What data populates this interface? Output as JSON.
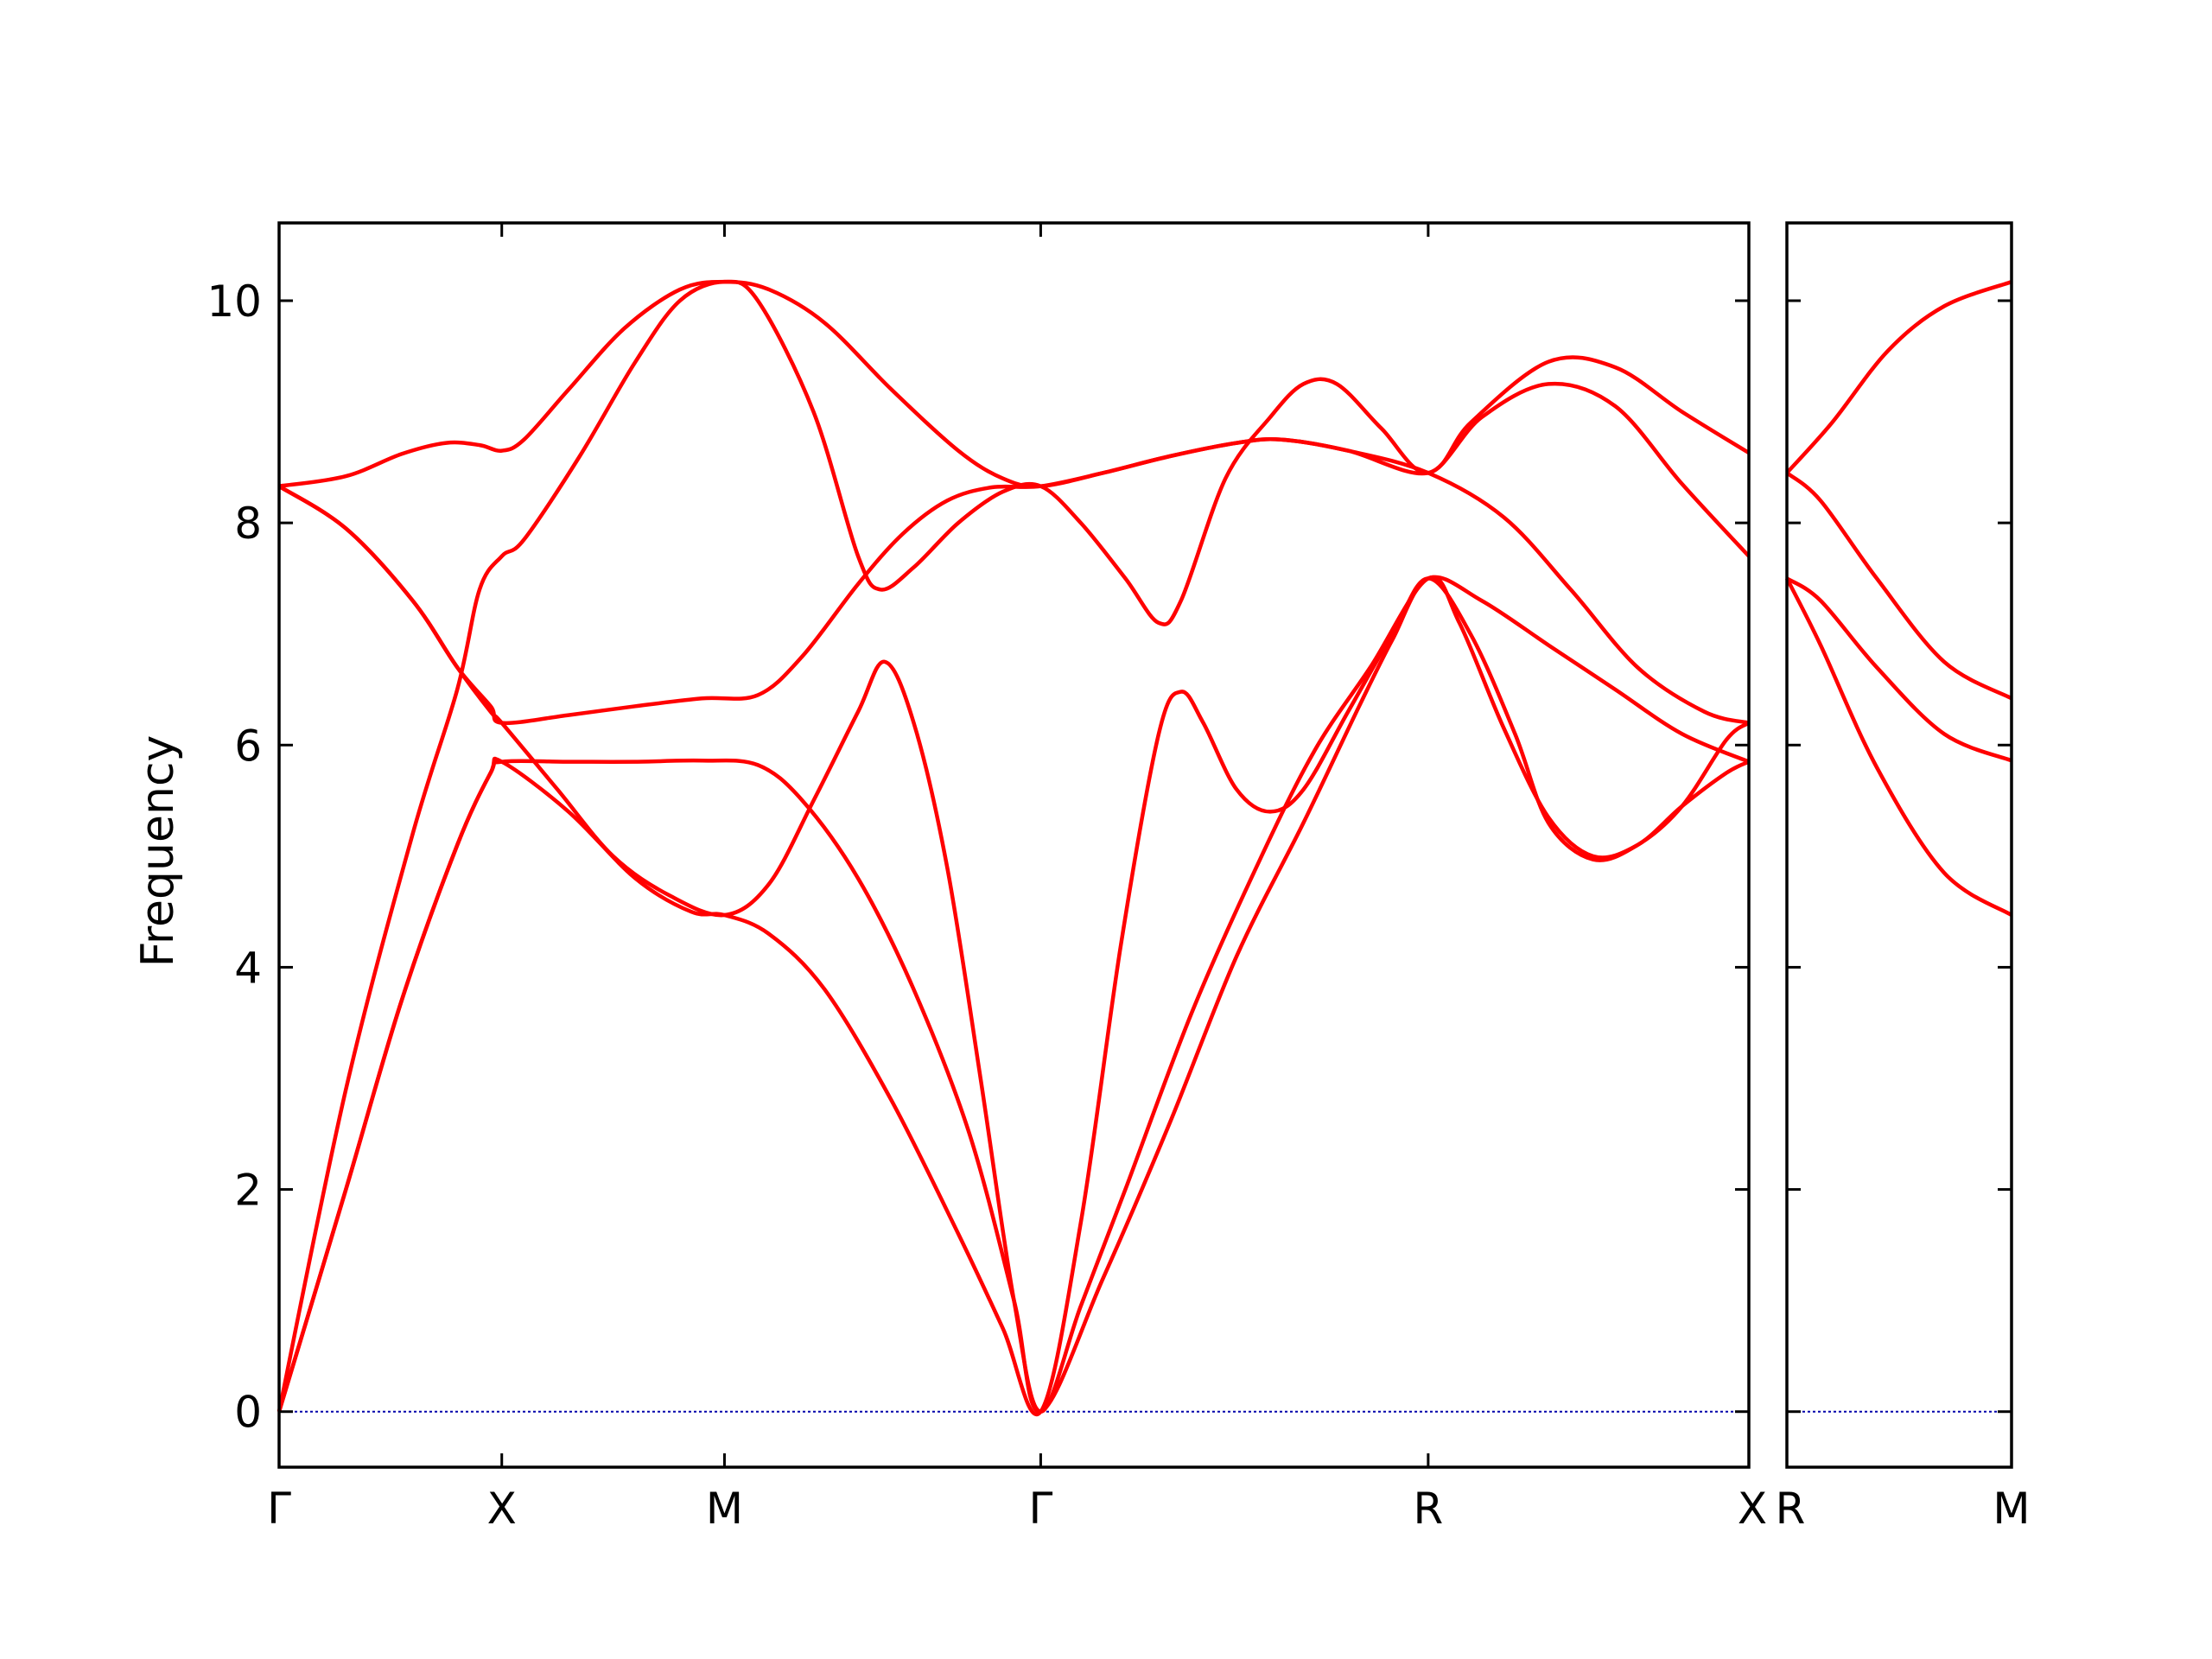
{
  "chart_data": {
    "type": "line",
    "ylabel": "Frequency",
    "ylim": [
      -0.5,
      10.7
    ],
    "yticks": [
      0,
      2,
      4,
      6,
      8,
      10
    ],
    "colors": {
      "band": "#ff0000",
      "zero_line": "#0000aa",
      "axes": "#000000"
    },
    "panels": [
      {
        "name": "left",
        "x_range": [
          0,
          6.6
        ],
        "xticks": [
          {
            "x": 0.0,
            "label": "Γ"
          },
          {
            "x": 1.0,
            "label": "X"
          },
          {
            "x": 2.0,
            "label": "M"
          },
          {
            "x": 3.42,
            "label": "Γ"
          },
          {
            "x": 5.16,
            "label": "R"
          },
          {
            "x": 6.6,
            "label": "X"
          }
        ],
        "series": [
          {
            "values": [
              [
                0,
                8.33
              ],
              [
                0.3,
                8.42
              ],
              [
                0.55,
                8.62
              ],
              [
                0.75,
                8.72
              ],
              [
                0.9,
                8.7
              ],
              [
                1.0,
                8.65
              ],
              [
                1.1,
                8.75
              ],
              [
                1.3,
                9.2
              ],
              [
                1.55,
                9.75
              ],
              [
                1.8,
                10.1
              ],
              [
                2.0,
                10.17
              ],
              [
                2.2,
                10.1
              ],
              [
                2.45,
                9.8
              ],
              [
                2.75,
                9.2
              ],
              [
                3.05,
                8.65
              ],
              [
                3.25,
                8.4
              ],
              [
                3.42,
                8.33
              ],
              [
                3.7,
                8.45
              ],
              [
                4.0,
                8.6
              ],
              [
                4.3,
                8.72
              ],
              [
                4.5,
                8.75
              ],
              [
                4.8,
                8.65
              ],
              [
                5.16,
                8.45
              ],
              [
                5.35,
                8.9
              ],
              [
                5.7,
                9.45
              ],
              [
                6.0,
                9.4
              ],
              [
                6.3,
                9.0
              ],
              [
                6.6,
                8.63
              ]
            ]
          },
          {
            "values": [
              [
                0,
                8.33
              ],
              [
                0.3,
                7.95
              ],
              [
                0.6,
                7.3
              ],
              [
                0.8,
                6.7
              ],
              [
                0.95,
                6.35
              ],
              [
                1.0,
                6.2
              ],
              [
                1.3,
                6.27
              ],
              [
                1.6,
                6.35
              ],
              [
                1.9,
                6.42
              ],
              [
                2.15,
                6.45
              ],
              [
                2.35,
                6.8
              ],
              [
                2.6,
                7.45
              ],
              [
                2.8,
                7.9
              ],
              [
                3.0,
                8.2
              ],
              [
                3.2,
                8.32
              ],
              [
                3.42,
                8.33
              ],
              [
                3.7,
                8.45
              ],
              [
                4.0,
                8.6
              ],
              [
                4.3,
                8.72
              ],
              [
                4.5,
                8.75
              ],
              [
                4.8,
                8.65
              ],
              [
                5.16,
                8.45
              ],
              [
                5.5,
                8.05
              ],
              [
                5.8,
                7.4
              ],
              [
                6.1,
                6.7
              ],
              [
                6.4,
                6.3
              ],
              [
                6.6,
                6.2
              ]
            ]
          },
          {
            "values": [
              [
                0,
                8.33
              ],
              [
                0.3,
                7.95
              ],
              [
                0.6,
                7.3
              ],
              [
                0.8,
                6.7
              ],
              [
                0.95,
                6.3
              ],
              [
                1.0,
                6.2
              ],
              [
                1.25,
                5.6
              ],
              [
                1.5,
                5.0
              ],
              [
                1.75,
                4.65
              ],
              [
                2.0,
                4.47
              ],
              [
                2.2,
                4.75
              ],
              [
                2.4,
                5.5
              ],
              [
                2.6,
                6.3
              ],
              [
                2.72,
                6.75
              ],
              [
                2.85,
                6.2
              ],
              [
                3.0,
                4.9
              ],
              [
                3.15,
                3.0
              ],
              [
                3.3,
                1.0
              ],
              [
                3.42,
                0.0
              ],
              [
                3.6,
                0.95
              ],
              [
                3.8,
                2.0
              ],
              [
                4.1,
                3.6
              ],
              [
                4.4,
                4.95
              ],
              [
                4.65,
                5.95
              ],
              [
                4.9,
                6.7
              ],
              [
                5.16,
                7.5
              ],
              [
                5.3,
                7.1
              ],
              [
                5.5,
                6.15
              ],
              [
                5.7,
                5.35
              ],
              [
                5.9,
                5.0
              ],
              [
                6.1,
                5.1
              ],
              [
                6.3,
                5.45
              ],
              [
                6.5,
                5.75
              ],
              [
                6.6,
                5.85
              ]
            ]
          },
          {
            "values": [
              [
                0,
                0.0
              ],
              [
                0.3,
                2.9
              ],
              [
                0.6,
                5.2
              ],
              [
                0.8,
                6.5
              ],
              [
                0.9,
                7.4
              ],
              [
                1.0,
                7.7
              ],
              [
                1.1,
                7.85
              ],
              [
                1.35,
                8.6
              ],
              [
                1.6,
                9.45
              ],
              [
                1.8,
                10.0
              ],
              [
                2.0,
                10.17
              ],
              [
                2.15,
                10.0
              ],
              [
                2.4,
                9.0
              ],
              [
                2.6,
                7.7
              ],
              [
                2.7,
                7.4
              ],
              [
                2.85,
                7.6
              ],
              [
                3.05,
                8.0
              ],
              [
                3.25,
                8.28
              ],
              [
                3.42,
                8.33
              ],
              [
                3.6,
                8.0
              ],
              [
                3.8,
                7.5
              ],
              [
                3.95,
                7.1
              ],
              [
                4.05,
                7.3
              ],
              [
                4.25,
                8.4
              ],
              [
                4.45,
                8.95
              ],
              [
                4.6,
                9.25
              ],
              [
                4.75,
                9.25
              ],
              [
                4.95,
                8.85
              ],
              [
                5.16,
                8.45
              ],
              [
                5.4,
                8.95
              ],
              [
                5.7,
                9.25
              ],
              [
                6.0,
                9.05
              ],
              [
                6.3,
                8.35
              ],
              [
                6.6,
                7.7
              ]
            ]
          },
          {
            "values": [
              [
                0,
                0.0
              ],
              [
                0.3,
                2.0
              ],
              [
                0.55,
                3.7
              ],
              [
                0.8,
                5.1
              ],
              [
                0.95,
                5.75
              ],
              [
                1.0,
                5.85
              ],
              [
                1.3,
                5.4
              ],
              [
                1.6,
                4.8
              ],
              [
                1.85,
                4.5
              ],
              [
                2.0,
                4.47
              ],
              [
                2.2,
                4.3
              ],
              [
                2.45,
                3.8
              ],
              [
                2.75,
                2.8
              ],
              [
                3.05,
                1.6
              ],
              [
                3.25,
                0.75
              ],
              [
                3.42,
                0.0
              ],
              [
                3.6,
                1.7
              ],
              [
                3.78,
                4.2
              ],
              [
                3.95,
                6.1
              ],
              [
                4.05,
                6.48
              ],
              [
                4.15,
                6.2
              ],
              [
                4.3,
                5.6
              ],
              [
                4.45,
                5.4
              ],
              [
                4.6,
                5.6
              ],
              [
                4.8,
                6.3
              ],
              [
                5.0,
                7.0
              ],
              [
                5.16,
                7.5
              ],
              [
                5.35,
                7.0
              ],
              [
                5.55,
                6.1
              ],
              [
                5.7,
                5.3
              ],
              [
                5.9,
                4.97
              ],
              [
                6.1,
                5.1
              ],
              [
                6.3,
                5.45
              ],
              [
                6.5,
                6.05
              ],
              [
                6.6,
                6.2
              ]
            ]
          },
          {
            "values": [
              [
                0,
                0.0
              ],
              [
                0.3,
                2.0
              ],
              [
                0.55,
                3.7
              ],
              [
                0.8,
                5.1
              ],
              [
                0.95,
                5.75
              ],
              [
                1.0,
                5.85
              ],
              [
                1.3,
                5.85
              ],
              [
                1.6,
                5.85
              ],
              [
                1.9,
                5.86
              ],
              [
                2.15,
                5.82
              ],
              [
                2.35,
                5.5
              ],
              [
                2.6,
                4.8
              ],
              [
                2.85,
                3.8
              ],
              [
                3.1,
                2.5
              ],
              [
                3.3,
                1.0
              ],
              [
                3.42,
                0.0
              ],
              [
                3.7,
                1.2
              ],
              [
                4.0,
                2.6
              ],
              [
                4.3,
                4.1
              ],
              [
                4.6,
                5.3
              ],
              [
                4.85,
                6.35
              ],
              [
                5.0,
                6.95
              ],
              [
                5.16,
                7.5
              ],
              [
                5.4,
                7.3
              ],
              [
                5.7,
                6.9
              ],
              [
                6.0,
                6.5
              ],
              [
                6.3,
                6.1
              ],
              [
                6.6,
                5.85
              ]
            ]
          }
        ]
      },
      {
        "name": "right",
        "x_range": [
          0,
          1
        ],
        "xticks": [
          {
            "x": 0.0,
            "label": "R"
          },
          {
            "x": 1.0,
            "label": "M"
          }
        ],
        "series": [
          {
            "values": [
              [
                0,
                8.45
              ],
              [
                0.2,
                8.9
              ],
              [
                0.45,
                9.55
              ],
              [
                0.7,
                9.95
              ],
              [
                1.0,
                10.17
              ]
            ]
          },
          {
            "values": [
              [
                0,
                8.45
              ],
              [
                0.15,
                8.2
              ],
              [
                0.4,
                7.5
              ],
              [
                0.7,
                6.75
              ],
              [
                1.0,
                6.42
              ]
            ]
          },
          {
            "values": [
              [
                0,
                7.5
              ],
              [
                0.15,
                7.3
              ],
              [
                0.4,
                6.7
              ],
              [
                0.7,
                6.1
              ],
              [
                1.0,
                5.86
              ]
            ]
          },
          {
            "values": [
              [
                0,
                7.5
              ],
              [
                0.15,
                6.9
              ],
              [
                0.4,
                5.8
              ],
              [
                0.7,
                4.85
              ],
              [
                1.0,
                4.47
              ]
            ]
          }
        ]
      }
    ]
  }
}
